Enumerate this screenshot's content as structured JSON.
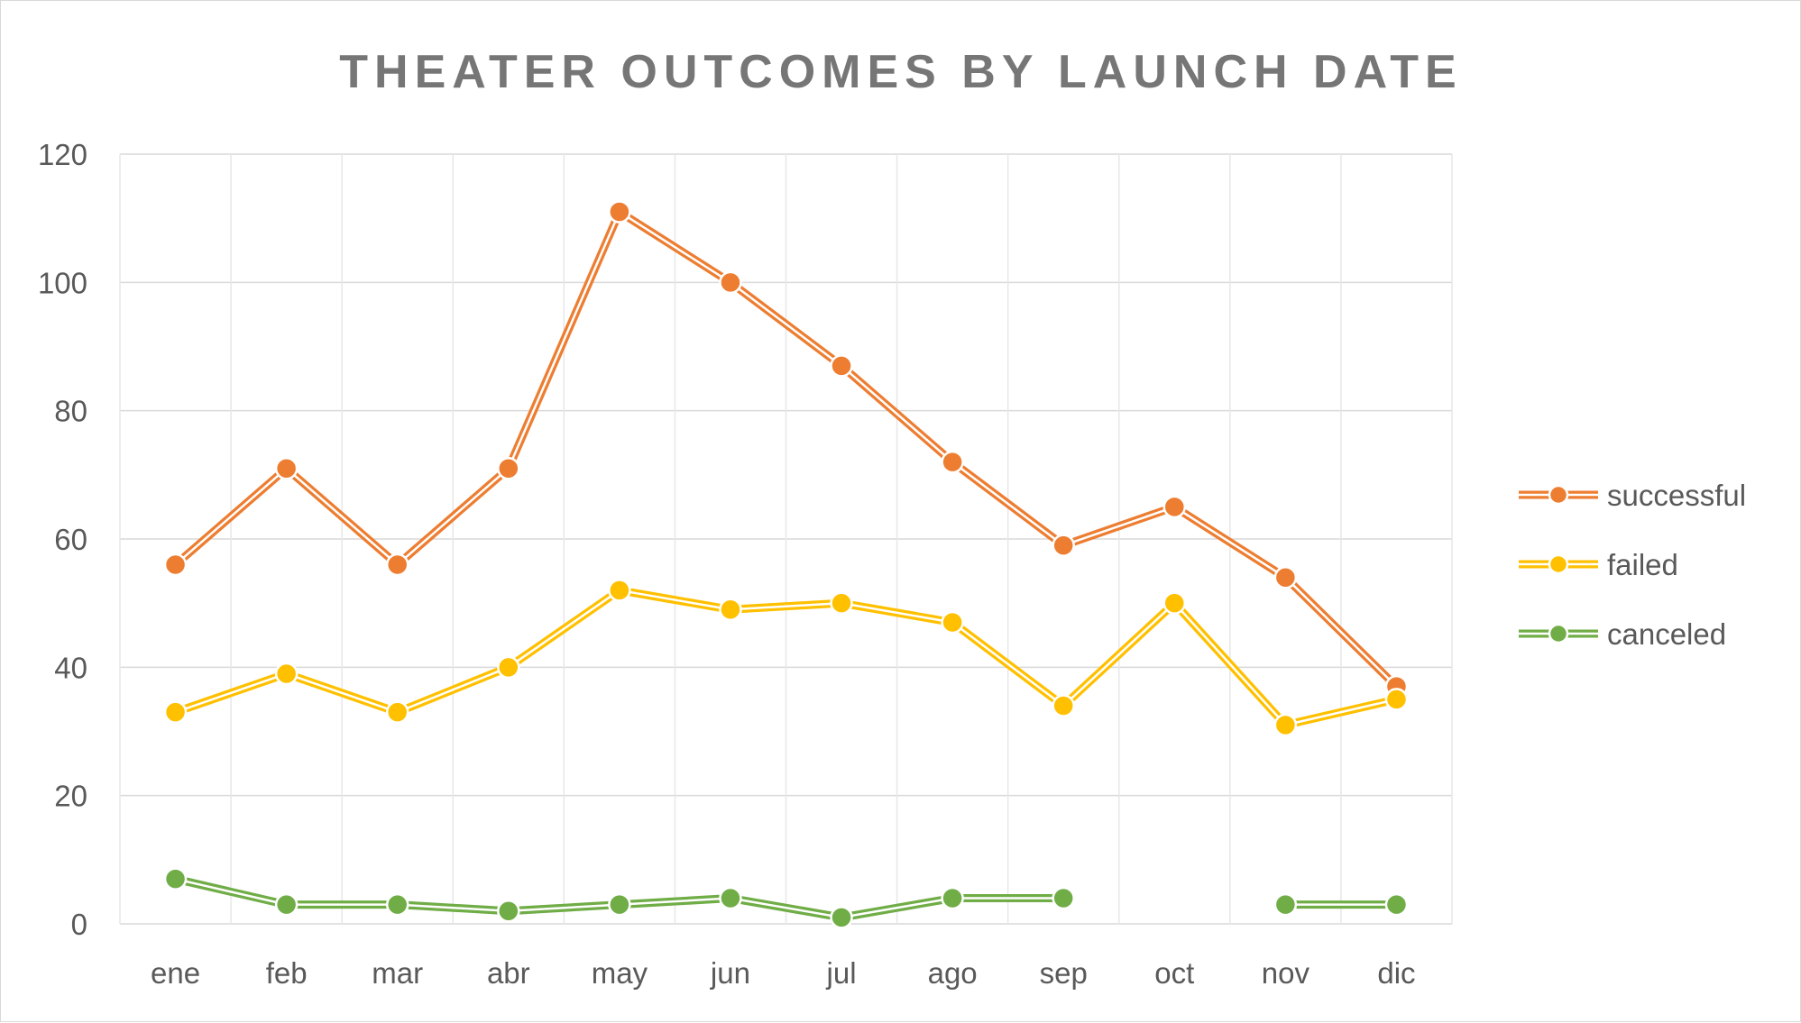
{
  "chart_data": {
    "type": "line",
    "title": "THEATER OUTCOMES BY LAUNCH DATE",
    "categories": [
      "ene",
      "feb",
      "mar",
      "abr",
      "may",
      "jun",
      "jul",
      "ago",
      "sep",
      "oct",
      "nov",
      "dic"
    ],
    "series": [
      {
        "name": "successful",
        "color": "#ED7D31",
        "values": [
          56,
          71,
          56,
          71,
          111,
          100,
          87,
          72,
          59,
          65,
          54,
          37
        ]
      },
      {
        "name": "failed",
        "color": "#FFC000",
        "values": [
          33,
          39,
          33,
          40,
          52,
          49,
          50,
          47,
          34,
          50,
          31,
          35
        ]
      },
      {
        "name": "canceled",
        "color": "#70AD47",
        "values": [
          7,
          3,
          3,
          2,
          3,
          4,
          1,
          4,
          4,
          null,
          3,
          3
        ]
      }
    ],
    "ylim": [
      0,
      120
    ],
    "yticks": [
      0,
      20,
      40,
      60,
      80,
      100,
      120
    ],
    "grid": true,
    "legend": "right"
  }
}
